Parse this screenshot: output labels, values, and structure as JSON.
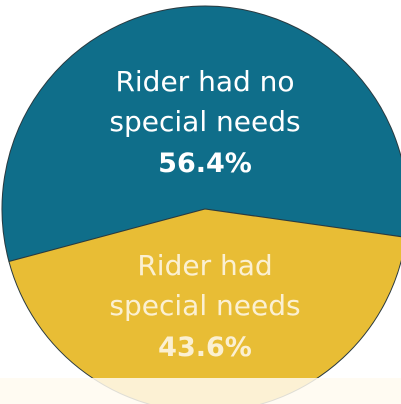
{
  "chart_data": {
    "type": "pie",
    "categories": [
      "Rider had no special needs",
      "Rider had special needs"
    ],
    "values": [
      56.4,
      43.6
    ],
    "value_labels": [
      "56.4%",
      "43.6%"
    ],
    "colors": [
      "#0f6e8a",
      "#e8bd35"
    ]
  }
}
